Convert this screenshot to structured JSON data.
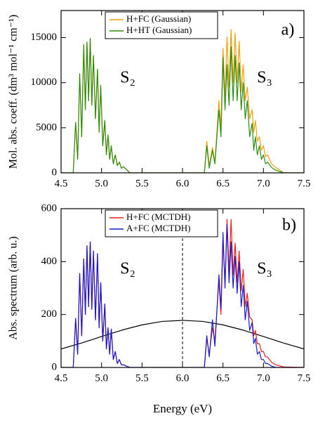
{
  "chart_data": [
    {
      "type": "line",
      "x": [
        4.5,
        4.65,
        4.68,
        4.705,
        4.73,
        4.755,
        4.78,
        4.8,
        4.82,
        4.84,
        4.86,
        4.88,
        4.9,
        4.925,
        4.95,
        4.97,
        4.99,
        5.015,
        5.04,
        5.06,
        5.08,
        5.1,
        5.12,
        5.145,
        5.17,
        5.195,
        5.22,
        5.245,
        5.27,
        5.35,
        6.0,
        6.27,
        6.3,
        6.33,
        6.37,
        6.4,
        6.45,
        6.475,
        6.5,
        6.525,
        6.55,
        6.575,
        6.6,
        6.625,
        6.65,
        6.675,
        6.7,
        6.725,
        6.75,
        6.775,
        6.8,
        6.83,
        6.86,
        6.88,
        6.9,
        6.925,
        6.95,
        6.975,
        7.0,
        7.025,
        7.05,
        7.1,
        7.15,
        7.25,
        7.5
      ],
      "series": [
        {
          "name": "H+FC (Gaussian)",
          "color": "#e8a20c",
          "values": [
            0,
            0,
            5600,
            1500,
            11000,
            4000,
            14200,
            7000,
            14500,
            8000,
            14900,
            7500,
            13000,
            6000,
            11500,
            4500,
            9700,
            3000,
            5800,
            2000,
            4200,
            1500,
            3000,
            1000,
            2000,
            800,
            1200,
            500,
            700,
            0,
            0,
            0,
            3500,
            800,
            2800,
            1200,
            8000,
            5000,
            13800,
            8500,
            15100,
            9500,
            15900,
            10000,
            15500,
            10000,
            14600,
            9000,
            12000,
            8000,
            9500,
            6000,
            7000,
            4500,
            5800,
            3500,
            4000,
            2500,
            3000,
            1800,
            2000,
            1000,
            600,
            0,
            0
          ]
        },
        {
          "name": "H+HT (Gaussian)",
          "color": "#2e8b12",
          "values": [
            0,
            0,
            5600,
            1500,
            11000,
            4000,
            14200,
            7000,
            14500,
            8000,
            14900,
            7500,
            13000,
            6000,
            11500,
            4500,
            9700,
            3000,
            5800,
            2000,
            4200,
            1500,
            3000,
            1000,
            2000,
            800,
            1200,
            500,
            700,
            0,
            0,
            0,
            3000,
            500,
            2500,
            1000,
            7000,
            4000,
            12800,
            7000,
            12000,
            7500,
            14000,
            8000,
            13000,
            8000,
            12200,
            7000,
            10000,
            6000,
            8000,
            4000,
            5500,
            2500,
            4000,
            2000,
            3000,
            1500,
            2000,
            1000,
            1200,
            600,
            300,
            0,
            0
          ]
        }
      ],
      "xlim": [
        4.5,
        7.5
      ],
      "ylim": [
        0,
        18000
      ],
      "xticks": [
        4.5,
        {
          "value": 5,
          "label": "5.0"
        },
        5.5,
        {
          "value": 6,
          "label": "6.0"
        },
        6.5,
        {
          "value": 7,
          "label": "7.0"
        },
        7.5
      ],
      "yticks": [
        0,
        5000,
        10000,
        15000
      ],
      "ylabel": "Mol. abs. coeff. (dm³ mol⁻¹ cm⁻¹)",
      "annotations": [
        "S₂",
        "S₃",
        "a)"
      ],
      "legend": "upper center"
    },
    {
      "type": "line",
      "x": [
        4.5,
        4.65,
        4.68,
        4.705,
        4.73,
        4.755,
        4.78,
        4.8,
        4.82,
        4.84,
        4.86,
        4.88,
        4.9,
        4.925,
        4.95,
        4.97,
        4.99,
        5.015,
        5.04,
        5.06,
        5.08,
        5.1,
        5.12,
        5.145,
        5.17,
        5.195,
        5.22,
        5.245,
        5.27,
        5.35,
        6.0,
        6.27,
        6.3,
        6.33,
        6.37,
        6.4,
        6.45,
        6.475,
        6.5,
        6.525,
        6.55,
        6.575,
        6.6,
        6.625,
        6.65,
        6.675,
        6.7,
        6.725,
        6.75,
        6.775,
        6.8,
        6.83,
        6.86,
        6.88,
        6.9,
        6.925,
        6.95,
        6.975,
        7.0,
        7.025,
        7.05,
        7.1,
        7.15,
        7.25,
        7.5
      ],
      "series": [
        {
          "color": "#000000",
          "x": [
            4.5,
            4.75,
            5.0,
            5.25,
            5.5,
            5.75,
            6.0,
            6.25,
            6.5,
            6.75,
            7.0,
            7.25,
            7.5
          ],
          "values": [
            70,
            92,
            117,
            141,
            161,
            174,
            178,
            174,
            161,
            141,
            117,
            92,
            70
          ]
        },
        {
          "name": "H+FC (MCTDH)",
          "color": "#e8201c",
          "values": [
            0,
            0,
            185,
            50,
            355,
            120,
            410,
            200,
            460,
            230,
            475,
            220,
            440,
            180,
            430,
            150,
            320,
            100,
            240,
            70,
            150,
            50,
            145,
            30,
            60,
            15,
            30,
            10,
            10,
            0,
            0,
            0,
            110,
            50,
            150,
            100,
            330,
            200,
            480,
            320,
            560,
            360,
            560,
            350,
            470,
            320,
            440,
            290,
            370,
            230,
            280,
            190,
            180,
            120,
            140,
            90,
            90,
            60,
            60,
            40,
            40,
            20,
            10,
            2,
            0
          ]
        },
        {
          "name": "A+FC (MCTDH)",
          "color": "#1a1acc",
          "values": [
            0,
            0,
            185,
            50,
            355,
            120,
            410,
            200,
            460,
            230,
            475,
            220,
            440,
            180,
            430,
            150,
            320,
            100,
            240,
            70,
            150,
            50,
            145,
            30,
            60,
            15,
            30,
            10,
            10,
            0,
            0,
            0,
            120,
            40,
            180,
            80,
            350,
            220,
            510,
            300,
            540,
            320,
            475,
            300,
            420,
            280,
            400,
            230,
            310,
            180,
            250,
            140,
            170,
            90,
            110,
            50,
            60,
            30,
            30,
            15,
            15,
            5,
            0,
            0,
            0
          ]
        }
      ],
      "xlim": [
        4.5,
        7.5
      ],
      "ylim": [
        0,
        600
      ],
      "xticks": [
        4.5,
        {
          "value": 5,
          "label": "5.0"
        },
        5.5,
        {
          "value": 6,
          "label": "6.0"
        },
        6.5,
        {
          "value": 7,
          "label": "7.0"
        },
        7.5
      ],
      "yticks": [
        0,
        200,
        400,
        600
      ],
      "vline": 6.0,
      "xlabel": "Energy (eV)",
      "ylabel": "Abs. spectrum (arb. u.)",
      "annotations": [
        "S₂",
        "S₃",
        "b)"
      ],
      "legend": "upper center"
    }
  ]
}
